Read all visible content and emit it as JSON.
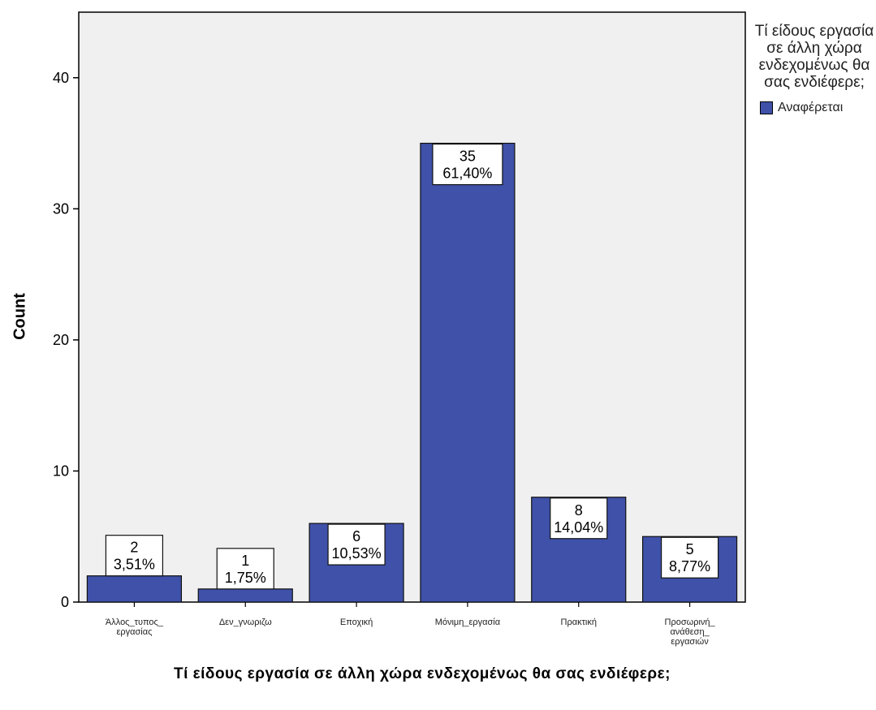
{
  "chart_data": {
    "type": "bar",
    "title": "",
    "xlabel": "Τί είδους εργασία σε άλλη χώρα ενδεχομένως θα σας ενδιέφερε;",
    "ylabel": "Count",
    "ylim": [
      0,
      45
    ],
    "yticks": [
      0,
      10,
      20,
      30,
      40
    ],
    "categories": [
      "Άλλος_τυπος_ εργασίας",
      "Δεν_γνωριζω",
      "Εποχική",
      "Μόνιμη_εργασία",
      "Πρακτική",
      "Προσωρινή_ ανάθεση_ εργασιών"
    ],
    "series": [
      {
        "name": "Αναφέρεται",
        "color": "#3f51a8",
        "values": [
          2,
          1,
          6,
          35,
          8,
          5
        ],
        "percent_labels": [
          "3,51%",
          "1,75%",
          "10,53%",
          "61,40%",
          "14,04%",
          "8,77%"
        ]
      }
    ],
    "legend": {
      "title": "Τί είδους εργασία σε άλλη χώρα ενδεχομένως θα σας ενδιέφερε;",
      "placement": "right"
    },
    "plot_background": "#f0f0f0",
    "grid": false
  }
}
